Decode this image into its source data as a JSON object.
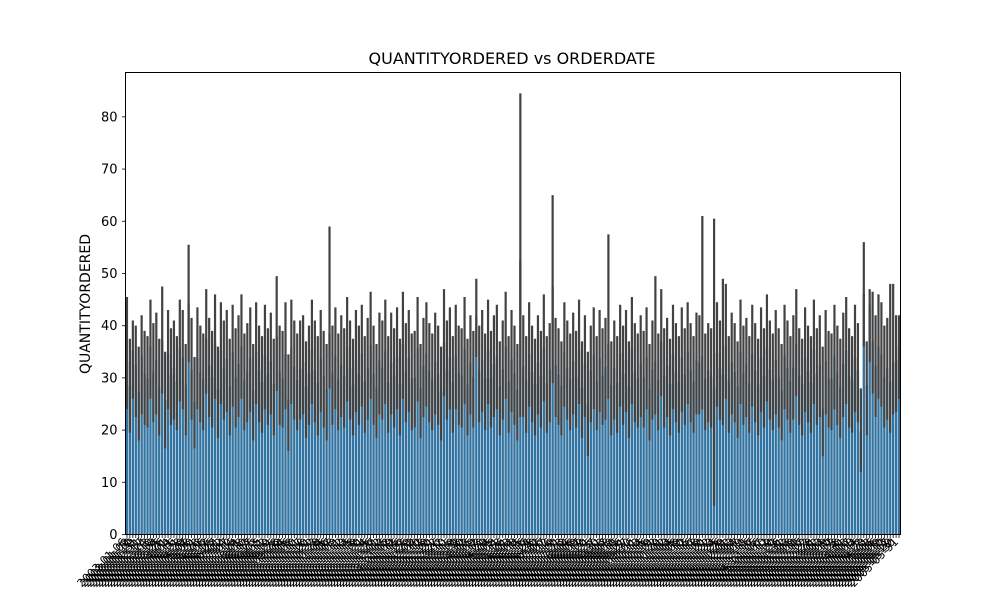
{
  "chart_data": {
    "type": "bar",
    "title": "QUANTITYORDERED vs ORDERDATE",
    "xlabel": "",
    "ylabel": "QUANTITYORDERED",
    "ylim": [
      0,
      88.5
    ],
    "yticks": [
      0,
      10,
      20,
      30,
      40,
      50,
      60,
      70,
      80
    ],
    "grid": false,
    "legend": "none",
    "bar_color": "#3274a1",
    "errorbar_color": "#424242",
    "categories": [
      "2003-01-06",
      "2003-01-09",
      "2003-01-10",
      "2003-01-29",
      "2003-01-31",
      "2003-02-11",
      "2003-02-17",
      "2003-02-24",
      "2003-03-03",
      "2003-03-10",
      "2003-03-18",
      "2003-03-24",
      "2003-03-25",
      "2003-03-26",
      "2003-04-01",
      "2003-04-04",
      "2003-04-11",
      "2003-04-16",
      "2003-04-21",
      "2003-04-28",
      "2003-04-29",
      "2003-05-07",
      "2003-05-08",
      "2003-05-20",
      "2003-05-21",
      "2003-05-28",
      "2003-06-03",
      "2003-06-06",
      "2003-06-12",
      "2003-06-16",
      "2003-06-25",
      "2003-06-27",
      "2003-07-01",
      "2003-07-02",
      "2003-07-04",
      "2003-07-07",
      "2003-07-10",
      "2003-07-16",
      "2003-07-24",
      "2003-08-01",
      "2003-08-08",
      "2003-08-10",
      "2003-08-13",
      "2003-08-17",
      "2003-08-25",
      "2003-09-03",
      "2003-09-05",
      "2003-09-11",
      "2003-09-12",
      "2003-09-19",
      "2003-09-21",
      "2003-09-25",
      "2003-09-28",
      "2003-10-02",
      "2003-10-04",
      "2003-10-05",
      "2003-10-06",
      "2003-10-08",
      "2003-10-10",
      "2003-10-11",
      "2003-10-17",
      "2003-10-18",
      "2003-10-20",
      "2003-10-21",
      "2003-10-22",
      "2003-10-23",
      "2003-10-28",
      "2003-11-04",
      "2003-11-05",
      "2003-11-06",
      "2003-11-07",
      "2003-11-08",
      "2003-11-09",
      "2003-11-11",
      "2003-11-12",
      "2003-11-13",
      "2003-11-14",
      "2003-11-15",
      "2003-11-18",
      "2003-11-19",
      "2003-11-20",
      "2003-11-21",
      "2003-11-24",
      "2003-11-25",
      "2003-11-26",
      "2003-11-27",
      "2003-12-01",
      "2003-12-02",
      "2003-12-03",
      "2003-12-05",
      "2004-01-02",
      "2004-01-09",
      "2004-01-12",
      "2004-01-15",
      "2004-01-16",
      "2004-01-22",
      "2004-01-26",
      "2004-01-29",
      "2004-02-02",
      "2004-02-04",
      "2004-02-10",
      "2004-02-12",
      "2004-02-18",
      "2004-02-19",
      "2004-02-20",
      "2004-02-21",
      "2004-02-22",
      "2004-02-26",
      "2004-03-02",
      "2004-03-10",
      "2004-03-11",
      "2004-03-15",
      "2004-03-19",
      "2004-03-20",
      "2004-03-28",
      "2004-03-30",
      "2004-04-02",
      "2004-04-03",
      "2004-04-05",
      "2004-04-09",
      "2004-04-12",
      "2004-04-13",
      "2004-04-20",
      "2004-04-29",
      "2004-05-04",
      "2004-05-05",
      "2004-05-08",
      "2004-05-11",
      "2004-05-18",
      "2004-05-26",
      "2004-06-01",
      "2004-06-03",
      "2004-06-04",
      "2004-06-08",
      "2004-06-14",
      "2004-06-15",
      "2004-06-16",
      "2004-06-17",
      "2004-06-24",
      "2004-06-28",
      "2004-06-30",
      "2004-07-02",
      "2004-07-06",
      "2004-07-07",
      "2004-07-12",
      "2004-07-16",
      "2004-07-19",
      "2004-07-20",
      "2004-07-21",
      "2004-07-23",
      "2004-08-02",
      "2004-08-04",
      "2004-08-06",
      "2004-08-08",
      "2004-08-09",
      "2004-08-17",
      "2004-08-19",
      "2004-08-20",
      "2004-08-21",
      "2004-08-25",
      "2004-08-27",
      "2004-08-30",
      "2004-09-01",
      "2004-09-03",
      "2004-09-07",
      "2004-09-08",
      "2004-09-09",
      "2004-09-10",
      "2004-09-15",
      "2004-09-16",
      "2004-09-21",
      "2004-09-27",
      "2004-09-30",
      "2004-10-06",
      "2004-10-11",
      "2004-10-13",
      "2004-10-14",
      "2004-10-15",
      "2004-10-16",
      "2004-10-19",
      "2004-10-21",
      "2004-10-22",
      "2004-10-29",
      "2004-11-01",
      "2004-11-02",
      "2004-11-03",
      "2004-11-04",
      "2004-11-05",
      "2004-11-08",
      "2004-11-09",
      "2004-11-10",
      "2004-11-12",
      "2004-11-15",
      "2004-11-16",
      "2004-11-17",
      "2004-11-18",
      "2004-11-19",
      "2004-11-20",
      "2004-11-21",
      "2004-11-22",
      "2004-11-23",
      "2004-11-24",
      "2004-11-25",
      "2004-11-26",
      "2004-11-29",
      "2004-12-01",
      "2004-12-02",
      "2004-12-03",
      "2004-12-04",
      "2004-12-07",
      "2004-12-09",
      "2004-12-10",
      "2004-12-15",
      "2004-12-16",
      "2004-12-17",
      "2005-01-05",
      "2005-01-06",
      "2005-01-07",
      "2005-01-10",
      "2005-01-12",
      "2005-01-19",
      "2005-01-20",
      "2005-01-23",
      "2005-01-26",
      "2005-01-31",
      "2005-02-02",
      "2005-02-03",
      "2005-02-08",
      "2005-02-09",
      "2005-02-10",
      "2005-02-16",
      "2005-02-17",
      "2005-02-22",
      "2005-02-23",
      "2005-02-28",
      "2005-03-01",
      "2005-03-02",
      "2005-03-03",
      "2005-03-04",
      "2005-03-09",
      "2005-03-10",
      "2005-03-17",
      "2005-03-23",
      "2005-03-28",
      "2005-03-30",
      "2005-04-01",
      "2005-04-03",
      "2005-04-07",
      "2005-04-08",
      "2005-04-14",
      "2005-04-15",
      "2005-04-22",
      "2005-04-23",
      "2005-05-01",
      "2005-05-03",
      "2005-05-05",
      "2005-05-06",
      "2005-05-09",
      "2005-05-10",
      "2005-05-13",
      "2005-05-17",
      "2005-05-29",
      "2005-05-30",
      "2005-05-31"
    ],
    "values": [
      33.1,
      28.5,
      35.2,
      32.6,
      27.4,
      34.1,
      30.8,
      29.9,
      36.0,
      31.2,
      33.4,
      28.1,
      37.2,
      25.8,
      34.6,
      30.5,
      31.9,
      29.3,
      35.8,
      34.0,
      28.7,
      44.3,
      31.6,
      25.4,
      33.9,
      31.0,
      29.8,
      37.5,
      32.4,
      30.1,
      36.7,
      27.9,
      35.3,
      31.8,
      33.6,
      28.4,
      34.9,
      30.2,
      32.7,
      36.1,
      29.5,
      31.3,
      33.8,
      27.6,
      35.0,
      31.4,
      29.2,
      34.4,
      30.7,
      33.2,
      28.9,
      37.9,
      31.1,
      30.0,
      34.5,
      25.9,
      35.6,
      32.1,
      29.6,
      31.7,
      33.0,
      28.3,
      30.9,
      35.4,
      31.5,
      29.0,
      33.7,
      30.4,
      27.8,
      38.6,
      31.0,
      34.2,
      29.7,
      32.5,
      30.3,
      35.9,
      31.9,
      28.6,
      33.5,
      30.6,
      34.7,
      29.4,
      32.0,
      36.3,
      30.8,
      28.2,
      33.3,
      31.8,
      35.1,
      29.1,
      32.9,
      30.5,
      34.0,
      28.8,
      36.5,
      31.2,
      33.8,
      29.9,
      30.1,
      35.7,
      28.0,
      32.3,
      34.8,
      31.4,
      29.6,
      33.1,
      30.7,
      27.5,
      36.8,
      31.6,
      33.9,
      29.2,
      34.3,
      31.0,
      30.4,
      35.5,
      28.7,
      32.8,
      30.2,
      41.9,
      31.3,
      33.4,
      29.8,
      35.2,
      30.0,
      32.6,
      34.1,
      28.4,
      31.7,
      36.0,
      29.3,
      33.6,
      30.9,
      27.7,
      52.6,
      32.2,
      29.5,
      34.6,
      31.1,
      28.9,
      33.0,
      30.3,
      35.8,
      29.0,
      31.5,
      47.6,
      32.4,
      30.6,
      28.5,
      34.9,
      31.8,
      29.7,
      33.2,
      30.1,
      35.3,
      28.1,
      32.7,
      24.9,
      31.3,
      34.4,
      29.4,
      33.7,
      30.5,
      32.1,
      36.4,
      28.6,
      31.9,
      29.1,
      34.7,
      30.8,
      33.5,
      28.3,
      35.6,
      31.2,
      29.9,
      32.8,
      30.0,
      34.0,
      27.9,
      31.6,
      33.1,
      29.6,
      36.9,
      30.4,
      32.3,
      28.8,
      34.5,
      31.0,
      29.2,
      33.9,
      30.7,
      35.1,
      31.4,
      29.3,
      33.3,
      32.9,
      34.2,
      29.8,
      31.5,
      30.2,
      28.0,
      34.8,
      31.8,
      30.6,
      36.2,
      29.5,
      33.0,
      31.1,
      28.4,
      35.0,
      30.9,
      32.6,
      29.0,
      34.6,
      31.3,
      28.7,
      33.8,
      30.3,
      35.9,
      31.7,
      29.7,
      33.4,
      30.1,
      27.6,
      34.3,
      31.9,
      29.4,
      32.0,
      36.6,
      30.5,
      28.9,
      33.6,
      31.2,
      29.1,
      35.4,
      30.8,
      32.5,
      24.1,
      33.2,
      30.0,
      29.8,
      34.1,
      31.0,
      28.2,
      32.7,
      35.2,
      30.4,
      29.5,
      33.9,
      31.4,
      19.8,
      46.1,
      28.6,
      44.0,
      37.1,
      32.3,
      36.0,
      34.5,
      30.2,
      31.8,
      29.3,
      32.9,
      33.4,
      36.1
    ],
    "ci_low": [
      24.0,
      19.5,
      26.0,
      22.5,
      18.0,
      23.0,
      21.0,
      20.5,
      26.0,
      21.5,
      23.0,
      19.0,
      27.0,
      16.5,
      24.0,
      21.0,
      22.0,
      20.0,
      25.5,
      24.0,
      19.0,
      33.0,
      22.0,
      16.5,
      24.0,
      21.5,
      20.0,
      27.0,
      22.5,
      20.5,
      26.0,
      18.5,
      25.0,
      22.0,
      23.5,
      19.0,
      24.5,
      20.5,
      22.5,
      26.0,
      20.0,
      21.5,
      23.5,
      18.0,
      25.0,
      21.5,
      19.5,
      24.0,
      21.0,
      23.0,
      19.0,
      27.5,
      21.0,
      20.5,
      24.0,
      16.0,
      25.0,
      22.0,
      20.0,
      22.0,
      23.0,
      18.5,
      21.0,
      25.0,
      21.5,
      19.0,
      23.5,
      20.5,
      18.0,
      28.0,
      21.0,
      24.0,
      20.0,
      22.5,
      20.5,
      25.5,
      22.0,
      19.0,
      23.5,
      21.0,
      24.5,
      19.5,
      22.0,
      26.0,
      21.0,
      18.5,
      23.0,
      22.0,
      25.0,
      19.5,
      23.0,
      20.5,
      24.0,
      19.0,
      26.0,
      21.5,
      23.5,
      20.0,
      20.5,
      25.5,
      18.5,
      22.5,
      24.5,
      21.5,
      20.0,
      23.0,
      21.0,
      18.0,
      26.5,
      22.0,
      24.0,
      19.5,
      24.0,
      21.0,
      20.5,
      25.0,
      19.0,
      23.0,
      20.5,
      34.0,
      21.5,
      23.5,
      20.0,
      25.0,
      20.5,
      22.5,
      24.0,
      19.0,
      22.0,
      26.0,
      19.5,
      23.5,
      21.0,
      18.0,
      22.5,
      22.5,
      19.5,
      24.5,
      21.5,
      19.0,
      23.0,
      20.5,
      25.5,
      19.5,
      21.5,
      29.0,
      22.5,
      21.0,
      19.0,
      24.5,
      22.0,
      20.0,
      23.0,
      20.5,
      25.0,
      18.5,
      22.5,
      15.0,
      21.5,
      24.0,
      20.0,
      23.5,
      21.0,
      22.0,
      26.0,
      19.0,
      22.0,
      19.5,
      24.5,
      21.0,
      23.5,
      18.5,
      25.0,
      21.5,
      20.5,
      22.5,
      20.5,
      24.0,
      18.0,
      22.0,
      23.0,
      20.0,
      26.5,
      20.5,
      22.5,
      19.0,
      24.0,
      21.5,
      19.5,
      23.5,
      21.0,
      25.0,
      21.5,
      19.5,
      23.0,
      23.0,
      24.0,
      20.0,
      21.5,
      20.5,
      5.5,
      24.5,
      22.0,
      21.0,
      26.0,
      19.5,
      23.0,
      21.5,
      18.5,
      25.0,
      21.0,
      22.5,
      19.5,
      24.5,
      21.5,
      19.0,
      23.5,
      20.5,
      25.5,
      22.0,
      20.0,
      23.0,
      20.5,
      18.0,
      24.0,
      22.0,
      19.5,
      22.0,
      26.5,
      21.0,
      19.0,
      23.5,
      21.5,
      19.5,
      25.0,
      21.0,
      22.5,
      15.0,
      23.0,
      20.5,
      20.0,
      24.0,
      21.0,
      18.5,
      22.5,
      25.0,
      20.5,
      19.5,
      23.5,
      21.5,
      12.0,
      36.0,
      19.0,
      33.0,
      27.0,
      22.5,
      26.0,
      24.5,
      20.5,
      22.0,
      19.5,
      23.0,
      23.5,
      26.0
    ],
    "ci_high": [
      45.5,
      37.5,
      41.0,
      40.0,
      36.0,
      42.0,
      39.0,
      38.0,
      45.0,
      40.5,
      42.5,
      37.5,
      47.5,
      35.0,
      43.0,
      39.5,
      41.0,
      38.0,
      45.0,
      43.0,
      36.5,
      55.5,
      41.5,
      34.0,
      43.5,
      40.0,
      38.5,
      47.0,
      41.5,
      39.0,
      46.0,
      36.0,
      44.5,
      41.0,
      43.0,
      37.5,
      44.0,
      39.5,
      42.0,
      46.0,
      38.5,
      40.5,
      43.5,
      36.5,
      44.5,
      40.0,
      38.0,
      44.0,
      39.5,
      42.5,
      37.5,
      49.5,
      40.0,
      39.0,
      44.5,
      34.5,
      45.0,
      41.0,
      38.5,
      41.0,
      42.0,
      37.0,
      40.0,
      45.0,
      41.0,
      38.0,
      43.0,
      39.0,
      36.5,
      59.0,
      40.0,
      43.5,
      38.5,
      42.0,
      39.5,
      45.5,
      41.0,
      37.5,
      43.0,
      40.0,
      44.0,
      38.0,
      41.5,
      46.5,
      40.0,
      36.5,
      42.5,
      41.0,
      45.0,
      38.0,
      42.5,
      39.5,
      43.5,
      37.5,
      46.5,
      40.5,
      43.0,
      38.5,
      39.0,
      45.5,
      36.5,
      41.5,
      44.5,
      40.5,
      38.5,
      42.5,
      40.0,
      36.0,
      47.0,
      41.0,
      43.5,
      38.0,
      44.0,
      40.0,
      39.5,
      45.5,
      37.5,
      42.0,
      39.0,
      49.0,
      40.0,
      43.0,
      38.5,
      45.0,
      39.0,
      42.0,
      44.0,
      37.0,
      41.0,
      46.5,
      38.0,
      43.0,
      40.0,
      36.5,
      84.5,
      42.0,
      38.0,
      44.5,
      40.0,
      37.5,
      42.0,
      39.0,
      46.0,
      38.0,
      40.5,
      65.0,
      41.5,
      39.5,
      37.0,
      44.5,
      41.0,
      38.5,
      42.5,
      39.0,
      45.0,
      37.0,
      42.0,
      35.0,
      40.0,
      43.5,
      38.0,
      43.0,
      39.5,
      41.5,
      57.5,
      37.0,
      41.0,
      38.0,
      44.0,
      40.0,
      43.0,
      37.0,
      45.5,
      40.5,
      38.5,
      42.0,
      39.0,
      43.5,
      36.5,
      41.0,
      49.5,
      38.5,
      47.0,
      39.5,
      41.5,
      37.5,
      44.0,
      40.5,
      38.0,
      43.5,
      39.5,
      44.5,
      40.5,
      38.0,
      42.5,
      42.0,
      61.0,
      38.5,
      40.5,
      39.5,
      60.5,
      44.5,
      41.0,
      49.0,
      48.0,
      38.0,
      42.5,
      40.5,
      37.0,
      45.0,
      40.0,
      41.5,
      38.0,
      44.0,
      40.5,
      37.5,
      43.5,
      39.5,
      46.0,
      41.0,
      38.5,
      43.0,
      39.5,
      36.5,
      44.0,
      41.0,
      38.0,
      42.0,
      47.0,
      39.5,
      37.5,
      43.5,
      40.0,
      38.0,
      45.0,
      39.5,
      42.0,
      36.0,
      43.0,
      39.0,
      38.5,
      44.0,
      40.0,
      37.5,
      42.5,
      45.5,
      39.5,
      38.0,
      44.0,
      40.5,
      28.0,
      56.0,
      37.0,
      47.0,
      46.5,
      42.0,
      46.0,
      44.5,
      40.0,
      41.5,
      48.0,
      48.0,
      42.0,
      42.0
    ]
  }
}
